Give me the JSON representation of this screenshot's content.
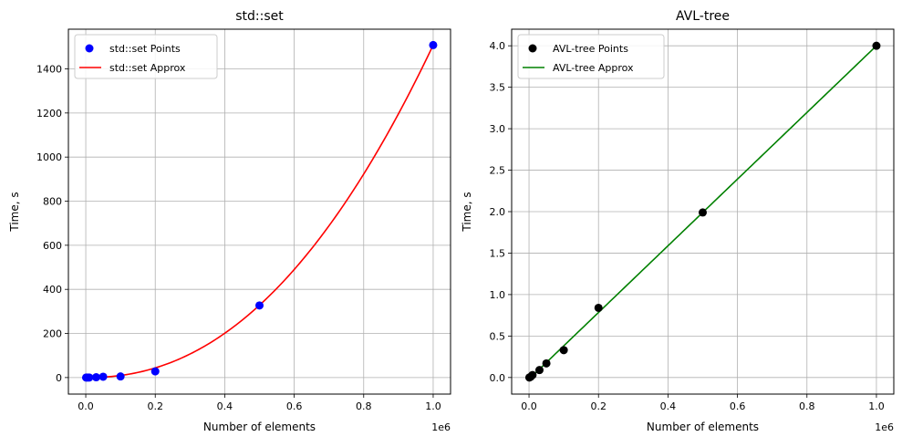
{
  "chart_data": [
    {
      "type": "scatter",
      "title": "std::set",
      "xlabel": "Number of elements",
      "ylabel": "Time, s",
      "x_offset_label": "1e6",
      "xlim": [
        -0.05,
        1.05
      ],
      "ylim": [
        -75,
        1580
      ],
      "xticks": [
        0.0,
        0.2,
        0.4,
        0.6,
        0.8,
        1.0
      ],
      "xtick_labels": [
        "0.0",
        "0.2",
        "0.4",
        "0.6",
        "0.8",
        "1.0"
      ],
      "yticks": [
        0,
        200,
        400,
        600,
        800,
        1000,
        1200,
        1400
      ],
      "ytick_labels": [
        "0",
        "200",
        "400",
        "600",
        "800",
        "1000",
        "1200",
        "1400"
      ],
      "grid": true,
      "legend_position": "top-left",
      "points": {
        "name": "std::set Points",
        "color": "#0000ff",
        "x": [
          0.001,
          0.005,
          0.01,
          0.03,
          0.05,
          0.1,
          0.2,
          0.5,
          1.0
        ],
        "y": [
          0.0,
          0.05,
          0.2,
          1.3,
          3.8,
          5.0,
          28,
          327,
          1508
        ]
      },
      "approx": {
        "name": "std::set Approx",
        "color": "#ff0000",
        "model": "power",
        "coefficient": 1508,
        "exponent": 2.2
      }
    },
    {
      "type": "scatter",
      "title": "AVL-tree",
      "xlabel": "Number of elements",
      "ylabel": "Time, s",
      "x_offset_label": "1e6",
      "xlim": [
        -0.05,
        1.05
      ],
      "ylim": [
        -0.2,
        4.2
      ],
      "xticks": [
        0.0,
        0.2,
        0.4,
        0.6,
        0.8,
        1.0
      ],
      "xtick_labels": [
        "0.0",
        "0.2",
        "0.4",
        "0.6",
        "0.8",
        "1.0"
      ],
      "yticks": [
        0.0,
        0.5,
        1.0,
        1.5,
        2.0,
        2.5,
        3.0,
        3.5,
        4.0
      ],
      "ytick_labels": [
        "0.0",
        "0.5",
        "1.0",
        "1.5",
        "2.0",
        "2.5",
        "3.0",
        "3.5",
        "4.0"
      ],
      "grid": true,
      "legend_position": "top-left",
      "points": {
        "name": "AVL-tree Points",
        "color": "#000000",
        "x": [
          0.001,
          0.005,
          0.01,
          0.03,
          0.05,
          0.1,
          0.2,
          0.5,
          1.0
        ],
        "y": [
          0.0,
          0.01,
          0.03,
          0.09,
          0.17,
          0.33,
          0.84,
          1.99,
          4.0
        ]
      },
      "approx": {
        "name": "AVL-tree Approx",
        "color": "#008000",
        "model": "linear",
        "slope": 4.02,
        "intercept": -0.02
      }
    }
  ]
}
